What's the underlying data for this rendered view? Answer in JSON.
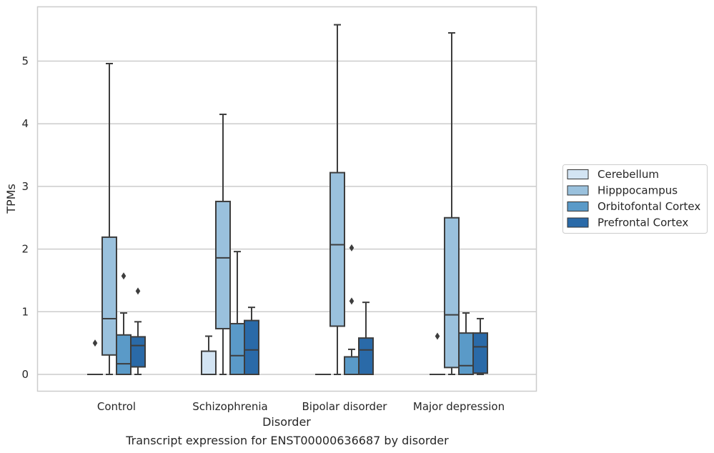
{
  "caption": "Transcript expression for ENST00000636687 by disorder",
  "chart_data": {
    "type": "box",
    "title": "",
    "xlabel": "Disorder",
    "ylabel": "TPMs",
    "ylim": [
      -0.27,
      5.87
    ],
    "yticks": [
      0,
      1,
      2,
      3,
      4,
      5
    ],
    "grid": "horizontal",
    "legend_position": "right",
    "categories": [
      "Control",
      "Schizophrenia",
      "Bipolar disorder",
      "Major depression"
    ],
    "series": [
      {
        "name": "Cerebellum",
        "color": "#d3e4f3",
        "boxes": [
          {
            "category": "Control",
            "whislo": 0,
            "q1": 0,
            "med": 0,
            "q3": 0,
            "whishi": 0,
            "fliers": [
              0.5
            ]
          },
          {
            "category": "Schizophrenia",
            "whislo": 0,
            "q1": 0,
            "med": 0,
            "q3": 0.37,
            "whishi": 0.61,
            "fliers": []
          },
          {
            "category": "Bipolar disorder",
            "whislo": 0,
            "q1": 0,
            "med": 0,
            "q3": 0,
            "whishi": 0,
            "fliers": []
          },
          {
            "category": "Major depression",
            "whislo": 0,
            "q1": 0,
            "med": 0,
            "q3": 0,
            "whishi": 0,
            "fliers": [
              0.61
            ]
          }
        ]
      },
      {
        "name": "Hipppocampus",
        "color": "#9ac1dd",
        "boxes": [
          {
            "category": "Control",
            "whislo": 0,
            "q1": 0.31,
            "med": 0.89,
            "q3": 2.19,
            "whishi": 4.96,
            "fliers": []
          },
          {
            "category": "Schizophrenia",
            "whislo": 0,
            "q1": 0.73,
            "med": 1.86,
            "q3": 2.76,
            "whishi": 4.15,
            "fliers": []
          },
          {
            "category": "Bipolar disorder",
            "whislo": 0,
            "q1": 0.77,
            "med": 2.07,
            "q3": 3.22,
            "whishi": 5.58,
            "fliers": []
          },
          {
            "category": "Major depression",
            "whislo": 0,
            "q1": 0.11,
            "med": 0.95,
            "q3": 2.5,
            "whishi": 5.45,
            "fliers": []
          }
        ]
      },
      {
        "name": "Orbitofontal Cortex",
        "color": "#5a9ac8",
        "boxes": [
          {
            "category": "Control",
            "whislo": 0,
            "q1": 0,
            "med": 0.17,
            "q3": 0.63,
            "whishi": 0.98,
            "fliers": [
              1.57
            ]
          },
          {
            "category": "Schizophrenia",
            "whislo": 0,
            "q1": 0,
            "med": 0.3,
            "q3": 0.81,
            "whishi": 1.96,
            "fliers": []
          },
          {
            "category": "Bipolar disorder",
            "whislo": 0,
            "q1": 0,
            "med": 0,
            "q3": 0.28,
            "whishi": 0.4,
            "fliers": [
              1.17,
              2.02
            ]
          },
          {
            "category": "Major depression",
            "whislo": 0,
            "q1": 0,
            "med": 0.14,
            "q3": 0.66,
            "whishi": 0.98,
            "fliers": []
          }
        ]
      },
      {
        "name": "Prefrontal Cortex",
        "color": "#2a6aa8",
        "boxes": [
          {
            "category": "Control",
            "whislo": 0,
            "q1": 0.12,
            "med": 0.46,
            "q3": 0.6,
            "whishi": 0.84,
            "fliers": [
              1.33
            ]
          },
          {
            "category": "Schizophrenia",
            "whislo": 0,
            "q1": 0,
            "med": 0.39,
            "q3": 0.86,
            "whishi": 1.07,
            "fliers": []
          },
          {
            "category": "Bipolar disorder",
            "whislo": 0,
            "q1": 0,
            "med": 0.39,
            "q3": 0.58,
            "whishi": 1.15,
            "fliers": []
          },
          {
            "category": "Major depression",
            "whislo": 0,
            "q1": 0.02,
            "med": 0.44,
            "q3": 0.66,
            "whishi": 0.89,
            "fliers": []
          }
        ]
      }
    ]
  }
}
